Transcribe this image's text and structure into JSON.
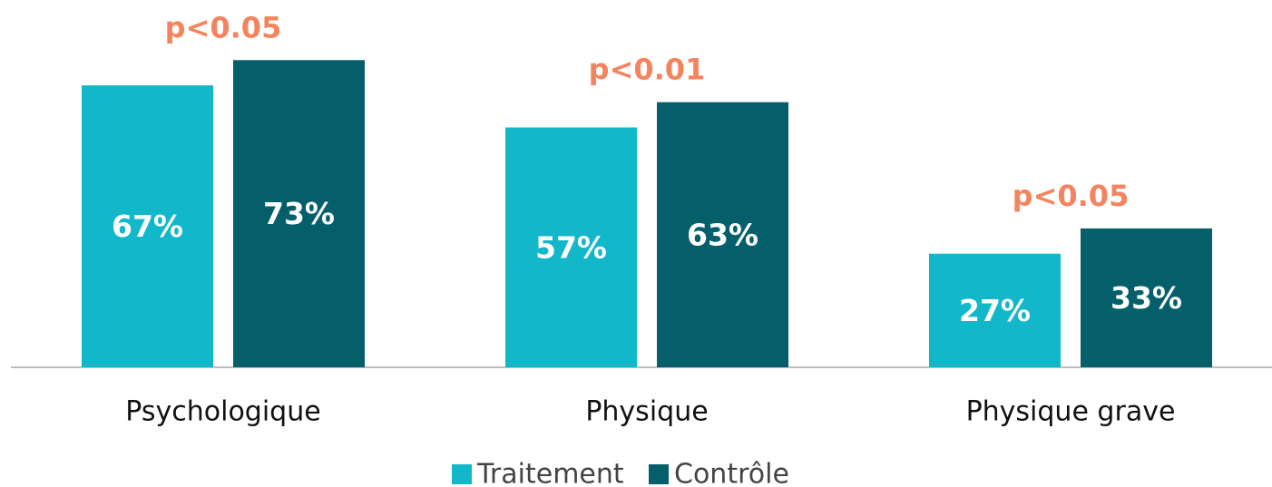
{
  "chart_data": {
    "type": "bar",
    "categories": [
      "Psychologique",
      "Physique",
      "Physique grave"
    ],
    "series": [
      {
        "name": "Traitement",
        "color": "#12b8ca",
        "values": [
          67,
          57,
          27
        ],
        "value_labels": [
          "67%",
          "57%",
          "27%"
        ]
      },
      {
        "name": "Contrôle",
        "color": "#055f6b",
        "values": [
          73,
          63,
          33
        ],
        "value_labels": [
          "73%",
          "63%",
          "33%"
        ]
      }
    ],
    "annotations": [
      "p<0.05",
      "p<0.01",
      "p<0.05"
    ],
    "annotation_color": "#f4845f",
    "legend": "bottom"
  }
}
